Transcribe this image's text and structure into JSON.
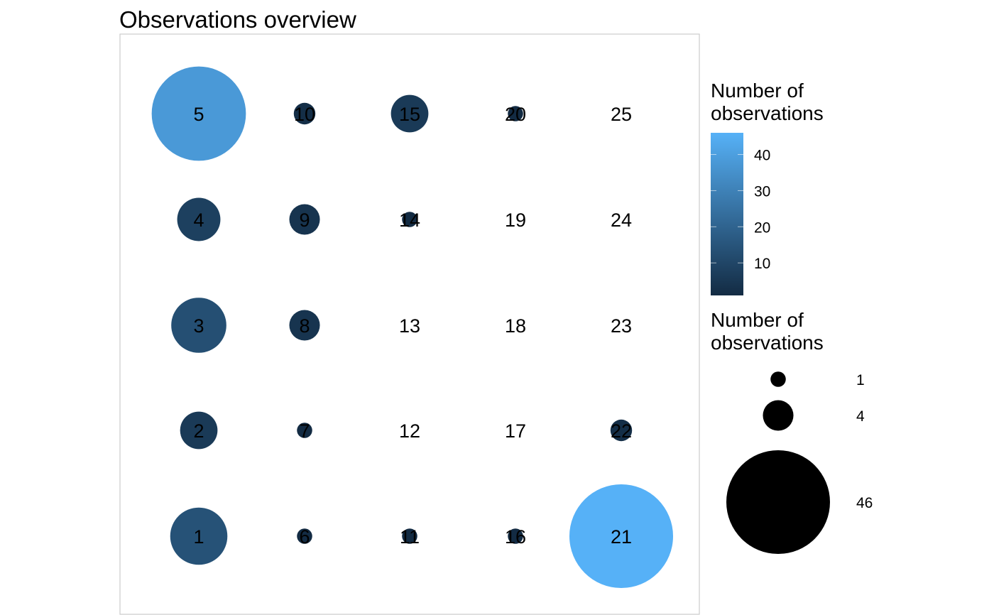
{
  "chart_data": {
    "type": "scatter",
    "title": "Observations overview",
    "grid": false,
    "x_positions": [
      1,
      2,
      3,
      4,
      5
    ],
    "y_positions": [
      1,
      2,
      3,
      4,
      5
    ],
    "cells": [
      {
        "label": "1",
        "x": 1,
        "y": 1,
        "count": 14
      },
      {
        "label": "2",
        "x": 1,
        "y": 2,
        "count": 6
      },
      {
        "label": "3",
        "x": 1,
        "y": 3,
        "count": 13
      },
      {
        "label": "4",
        "x": 1,
        "y": 4,
        "count": 8
      },
      {
        "label": "5",
        "x": 1,
        "y": 5,
        "count": 38
      },
      {
        "label": "6",
        "x": 2,
        "y": 1,
        "count": 1
      },
      {
        "label": "7",
        "x": 2,
        "y": 2,
        "count": 1
      },
      {
        "label": "8",
        "x": 2,
        "y": 3,
        "count": 4
      },
      {
        "label": "9",
        "x": 2,
        "y": 4,
        "count": 4
      },
      {
        "label": "10",
        "x": 2,
        "y": 5,
        "count": 2
      },
      {
        "label": "11",
        "x": 3,
        "y": 1,
        "count": 1
      },
      {
        "label": "12",
        "x": 3,
        "y": 2,
        "count": null
      },
      {
        "label": "13",
        "x": 3,
        "y": 3,
        "count": null
      },
      {
        "label": "14",
        "x": 3,
        "y": 4,
        "count": 1
      },
      {
        "label": "15",
        "x": 3,
        "y": 5,
        "count": 6
      },
      {
        "label": "16",
        "x": 4,
        "y": 1,
        "count": 1
      },
      {
        "label": "17",
        "x": 4,
        "y": 2,
        "count": null
      },
      {
        "label": "18",
        "x": 4,
        "y": 3,
        "count": null
      },
      {
        "label": "19",
        "x": 4,
        "y": 4,
        "count": null
      },
      {
        "label": "20",
        "x": 4,
        "y": 5,
        "count": 1
      },
      {
        "label": "21",
        "x": 5,
        "y": 1,
        "count": 46
      },
      {
        "label": "22",
        "x": 5,
        "y": 2,
        "count": 2
      },
      {
        "label": "23",
        "x": 5,
        "y": 3,
        "count": null
      },
      {
        "label": "24",
        "x": 5,
        "y": 4,
        "count": null
      },
      {
        "label": "25",
        "x": 5,
        "y": 5,
        "count": null
      }
    ],
    "color_legend": {
      "title_lines": [
        "Number of",
        "observations"
      ],
      "min": 1,
      "max": 46,
      "ticks": [
        10,
        20,
        30,
        40
      ],
      "low_color": "#132B43",
      "high_color": "#56B1F7",
      "placement": "right"
    },
    "size_legend": {
      "title_lines": [
        "Number of",
        "observations"
      ],
      "items": [
        {
          "label": "1",
          "count": 1
        },
        {
          "label": "4",
          "count": 4
        },
        {
          "label": "46",
          "count": 46
        }
      ],
      "color": "#000000",
      "placement": "right"
    }
  }
}
